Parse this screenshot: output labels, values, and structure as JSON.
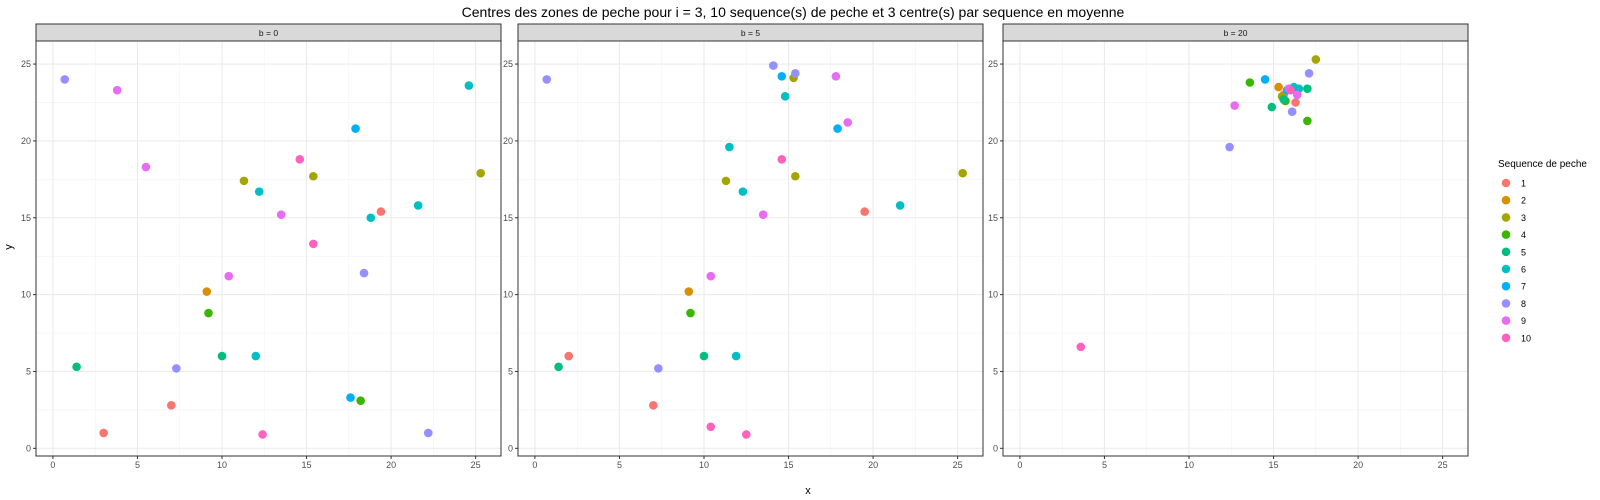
{
  "chart_data": {
    "type": "scatter",
    "title": "Centres des zones de peche pour i = 3, 10 sequence(s) de peche et 3 centre(s) par sequence en moyenne",
    "xlabel": "x",
    "ylabel": "y",
    "xlim": [
      -1,
      26.5
    ],
    "ylim": [
      -0.5,
      26.5
    ],
    "x_ticks": [
      0,
      5,
      10,
      15,
      20,
      25
    ],
    "y_ticks": [
      0,
      5,
      10,
      15,
      20,
      25
    ],
    "grid": true,
    "legend": {
      "title": "Sequence de peche",
      "placement": "right",
      "items": [
        {
          "label": "1",
          "color": "#F8766D"
        },
        {
          "label": "2",
          "color": "#D89000"
        },
        {
          "label": "3",
          "color": "#A3A500"
        },
        {
          "label": "4",
          "color": "#39B600"
        },
        {
          "label": "5",
          "color": "#00BF7D"
        },
        {
          "label": "6",
          "color": "#00BFC4"
        },
        {
          "label": "7",
          "color": "#00B0F6"
        },
        {
          "label": "8",
          "color": "#9590FF"
        },
        {
          "label": "9",
          "color": "#E76BF3"
        },
        {
          "label": "10",
          "color": "#FF62BC"
        }
      ]
    },
    "panels": [
      {
        "strip": "b = 0",
        "points": [
          {
            "seq": "1",
            "x": 3.0,
            "y": 1.0
          },
          {
            "seq": "1",
            "x": 7.0,
            "y": 2.8
          },
          {
            "seq": "1",
            "x": 19.4,
            "y": 15.4
          },
          {
            "seq": "2",
            "x": 9.1,
            "y": 10.2
          },
          {
            "seq": "3",
            "x": 11.3,
            "y": 17.4
          },
          {
            "seq": "3",
            "x": 15.4,
            "y": 17.7
          },
          {
            "seq": "3",
            "x": 25.3,
            "y": 17.9
          },
          {
            "seq": "4",
            "x": 9.2,
            "y": 8.8
          },
          {
            "seq": "4",
            "x": 18.2,
            "y": 3.1
          },
          {
            "seq": "5",
            "x": 1.4,
            "y": 5.3
          },
          {
            "seq": "5",
            "x": 10.0,
            "y": 6.0
          },
          {
            "seq": "6",
            "x": 12.0,
            "y": 6.0
          },
          {
            "seq": "6",
            "x": 12.2,
            "y": 16.7
          },
          {
            "seq": "6",
            "x": 18.8,
            "y": 15.0
          },
          {
            "seq": "6",
            "x": 21.6,
            "y": 15.8
          },
          {
            "seq": "6",
            "x": 24.6,
            "y": 23.6
          },
          {
            "seq": "7",
            "x": 17.6,
            "y": 3.3
          },
          {
            "seq": "7",
            "x": 17.9,
            "y": 20.8
          },
          {
            "seq": "8",
            "x": 0.7,
            "y": 24.0
          },
          {
            "seq": "8",
            "x": 7.3,
            "y": 5.2
          },
          {
            "seq": "8",
            "x": 18.4,
            "y": 11.4
          },
          {
            "seq": "8",
            "x": 22.2,
            "y": 1.0
          },
          {
            "seq": "9",
            "x": 3.8,
            "y": 23.3
          },
          {
            "seq": "9",
            "x": 5.5,
            "y": 18.3
          },
          {
            "seq": "9",
            "x": 10.4,
            "y": 11.2
          },
          {
            "seq": "9",
            "x": 13.5,
            "y": 15.2
          },
          {
            "seq": "10",
            "x": 12.4,
            "y": 0.9
          },
          {
            "seq": "10",
            "x": 14.6,
            "y": 18.8
          },
          {
            "seq": "10",
            "x": 15.4,
            "y": 13.3
          }
        ]
      },
      {
        "strip": "b = 5",
        "points": [
          {
            "seq": "1",
            "x": 2.0,
            "y": 6.0
          },
          {
            "seq": "1",
            "x": 7.0,
            "y": 2.8
          },
          {
            "seq": "1",
            "x": 19.5,
            "y": 15.4
          },
          {
            "seq": "2",
            "x": 9.1,
            "y": 10.2
          },
          {
            "seq": "3",
            "x": 11.3,
            "y": 17.4
          },
          {
            "seq": "3",
            "x": 15.4,
            "y": 17.7
          },
          {
            "seq": "3",
            "x": 25.3,
            "y": 17.9
          },
          {
            "seq": "3",
            "x": 15.3,
            "y": 24.1
          },
          {
            "seq": "4",
            "x": 9.2,
            "y": 8.8
          },
          {
            "seq": "5",
            "x": 1.4,
            "y": 5.3
          },
          {
            "seq": "5",
            "x": 10.0,
            "y": 6.0
          },
          {
            "seq": "6",
            "x": 11.5,
            "y": 19.6
          },
          {
            "seq": "6",
            "x": 11.9,
            "y": 6.0
          },
          {
            "seq": "6",
            "x": 12.3,
            "y": 16.7
          },
          {
            "seq": "6",
            "x": 14.8,
            "y": 22.9
          },
          {
            "seq": "6",
            "x": 21.6,
            "y": 15.8
          },
          {
            "seq": "7",
            "x": 14.6,
            "y": 24.2
          },
          {
            "seq": "7",
            "x": 17.9,
            "y": 20.8
          },
          {
            "seq": "8",
            "x": 0.7,
            "y": 24.0
          },
          {
            "seq": "8",
            "x": 7.3,
            "y": 5.2
          },
          {
            "seq": "8",
            "x": 14.1,
            "y": 24.9
          },
          {
            "seq": "8",
            "x": 15.4,
            "y": 24.4
          },
          {
            "seq": "9",
            "x": 13.5,
            "y": 15.2
          },
          {
            "seq": "9",
            "x": 10.4,
            "y": 11.2
          },
          {
            "seq": "9",
            "x": 17.8,
            "y": 24.2
          },
          {
            "seq": "9",
            "x": 18.5,
            "y": 21.2
          },
          {
            "seq": "10",
            "x": 10.4,
            "y": 1.4
          },
          {
            "seq": "10",
            "x": 12.5,
            "y": 0.9
          },
          {
            "seq": "10",
            "x": 14.6,
            "y": 18.8
          }
        ]
      },
      {
        "strip": "b = 20",
        "points": [
          {
            "seq": "1",
            "x": 16.1,
            "y": 23.4
          },
          {
            "seq": "1",
            "x": 16.3,
            "y": 22.5
          },
          {
            "seq": "1",
            "x": 15.6,
            "y": 23.0
          },
          {
            "seq": "2",
            "x": 15.3,
            "y": 23.5
          },
          {
            "seq": "3",
            "x": 17.5,
            "y": 25.3
          },
          {
            "seq": "3",
            "x": 15.5,
            "y": 22.9
          },
          {
            "seq": "4",
            "x": 13.6,
            "y": 23.8
          },
          {
            "seq": "4",
            "x": 15.7,
            "y": 22.6
          },
          {
            "seq": "4",
            "x": 17.0,
            "y": 21.3
          },
          {
            "seq": "5",
            "x": 14.9,
            "y": 22.2
          },
          {
            "seq": "5",
            "x": 17.0,
            "y": 23.4
          },
          {
            "seq": "5",
            "x": 15.6,
            "y": 22.7
          },
          {
            "seq": "6",
            "x": 16.2,
            "y": 23.5
          },
          {
            "seq": "6",
            "x": 16.5,
            "y": 23.4
          },
          {
            "seq": "7",
            "x": 14.5,
            "y": 24.0
          },
          {
            "seq": "7",
            "x": 15.8,
            "y": 23.3
          },
          {
            "seq": "8",
            "x": 12.4,
            "y": 19.6
          },
          {
            "seq": "8",
            "x": 16.1,
            "y": 21.9
          },
          {
            "seq": "8",
            "x": 17.1,
            "y": 24.4
          },
          {
            "seq": "9",
            "x": 12.7,
            "y": 22.3
          },
          {
            "seq": "9",
            "x": 16.4,
            "y": 23.0
          },
          {
            "seq": "9",
            "x": 15.9,
            "y": 23.4
          },
          {
            "seq": "10",
            "x": 3.6,
            "y": 6.6
          },
          {
            "seq": "10",
            "x": 16.0,
            "y": 23.3
          }
        ]
      }
    ]
  }
}
